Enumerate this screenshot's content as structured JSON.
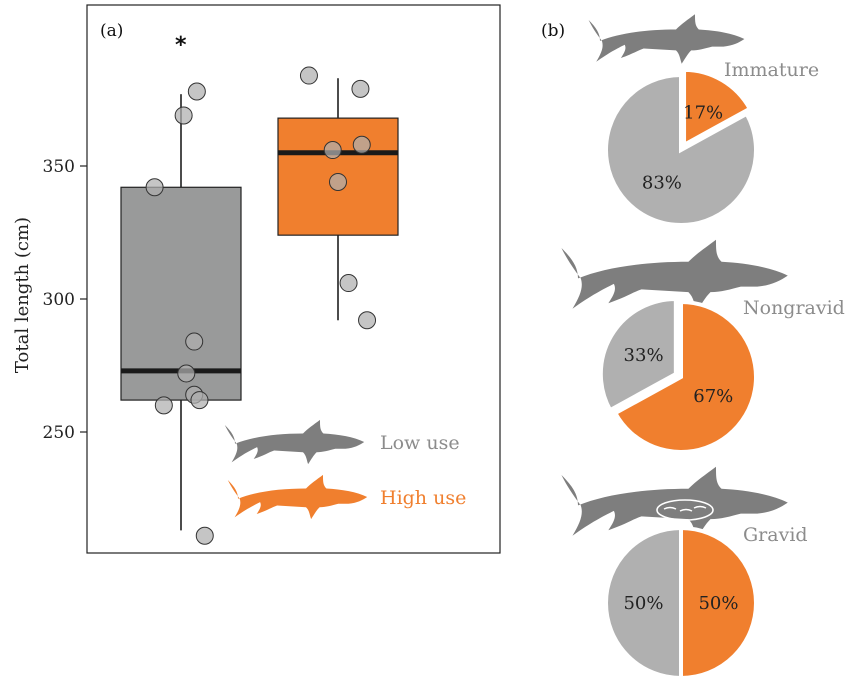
{
  "colors": {
    "low": "#8c8c8c",
    "high": "#f07f2e",
    "lowBox": "#999a9a",
    "highBox": "#f07f2e",
    "pieGray": "#b0b0b0",
    "pieOrange": "#f07f2e",
    "silhouette": "#7e7e7e"
  },
  "chart_data": [
    {
      "type": "box",
      "panel_label": "(a)",
      "title": "",
      "ylabel": "Total length (cm)",
      "ylim": [
        200,
        400
      ],
      "yticks": [
        250,
        300,
        350
      ],
      "significance_marker": "*",
      "legend": [
        {
          "name": "Low use",
          "color": "#8c8c8c",
          "icon": "shark-silhouette-icon"
        },
        {
          "name": "High use",
          "color": "#f07f2e",
          "icon": "shark-silhouette-icon"
        }
      ],
      "series": [
        {
          "name": "Low use",
          "q1": 262,
          "median": 273,
          "q3": 342,
          "whisker_low": 213,
          "whisker_high": 377,
          "points": [
            {
              "x": -0.2,
              "y": 342
            },
            {
              "x": 0.02,
              "y": 369
            },
            {
              "x": 0.12,
              "y": 378
            },
            {
              "x": 0.1,
              "y": 284
            },
            {
              "x": 0.04,
              "y": 272
            },
            {
              "x": 0.1,
              "y": 264
            },
            {
              "x": -0.13,
              "y": 260
            },
            {
              "x": 0.14,
              "y": 262
            },
            {
              "x": 0.18,
              "y": 211
            }
          ]
        },
        {
          "name": "High use",
          "q1": 324,
          "median": 355,
          "q3": 368,
          "whisker_low": 292,
          "whisker_high": 383,
          "points": [
            {
              "x": -0.22,
              "y": 384
            },
            {
              "x": 0.17,
              "y": 379
            },
            {
              "x": 0.18,
              "y": 358
            },
            {
              "x": -0.04,
              "y": 356
            },
            {
              "x": 0.0,
              "y": 344
            },
            {
              "x": 0.08,
              "y": 306
            },
            {
              "x": 0.22,
              "y": 292
            }
          ]
        }
      ]
    },
    {
      "type": "pie",
      "panel_label": "(b)",
      "pies": [
        {
          "title": "Immature",
          "icon": "shark-silhouette-icon",
          "slices": [
            {
              "label": "17%",
              "value": 17,
              "color": "#f07f2e"
            },
            {
              "label": "83%",
              "value": 83,
              "color": "#b0b0b0"
            }
          ]
        },
        {
          "title": "Nongravid",
          "icon": "shark-silhouette-icon",
          "slices": [
            {
              "label": "67%",
              "value": 67,
              "color": "#f07f2e"
            },
            {
              "label": "33%",
              "value": 33,
              "color": "#b0b0b0"
            }
          ]
        },
        {
          "title": "Gravid",
          "icon": "pregnant-shark-silhouette-icon",
          "slices": [
            {
              "label": "50%",
              "value": 50,
              "color": "#f07f2e"
            },
            {
              "label": "50%",
              "value": 50,
              "color": "#b0b0b0"
            }
          ]
        }
      ]
    }
  ]
}
